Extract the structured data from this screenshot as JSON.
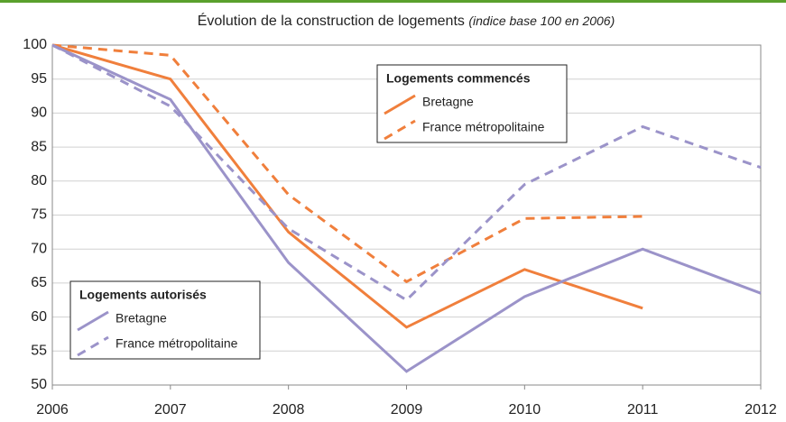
{
  "chart_data": {
    "type": "line",
    "title": "Évolution de la construction de logements",
    "subtitle": "(indice base 100 en 2006)",
    "x": [
      2006,
      2007,
      2008,
      2009,
      2010,
      2011,
      2012
    ],
    "xlim": [
      2006,
      2012
    ],
    "xticks": [
      2006,
      2007,
      2008,
      2009,
      2010,
      2011,
      2012
    ],
    "ylim": [
      50,
      100
    ],
    "yticks": [
      50,
      55,
      60,
      65,
      70,
      75,
      80,
      85,
      90,
      95,
      100
    ],
    "grid": true,
    "groups": [
      {
        "title": "Logements commencés",
        "series": [
          {
            "name": "Bretagne",
            "color": "#f07f3c",
            "dashed": false,
            "values": [
              100,
              95,
              72.5,
              58.5,
              67,
              61.3,
              null
            ]
          },
          {
            "name": "France métropolitaine",
            "color": "#f07f3c",
            "dashed": true,
            "values": [
              100,
              98.5,
              78,
              65.2,
              74.5,
              74.8,
              null
            ]
          }
        ]
      },
      {
        "title": "Logements autorisés",
        "series": [
          {
            "name": "Bretagne",
            "color": "#9b93c9",
            "dashed": false,
            "values": [
              100,
              92,
              68,
              52,
              63,
              70,
              63.5
            ]
          },
          {
            "name": "France métropolitaine",
            "color": "#9b93c9",
            "dashed": true,
            "values": [
              100,
              91,
              73,
              62.5,
              79.5,
              88,
              82
            ]
          }
        ]
      }
    ]
  }
}
